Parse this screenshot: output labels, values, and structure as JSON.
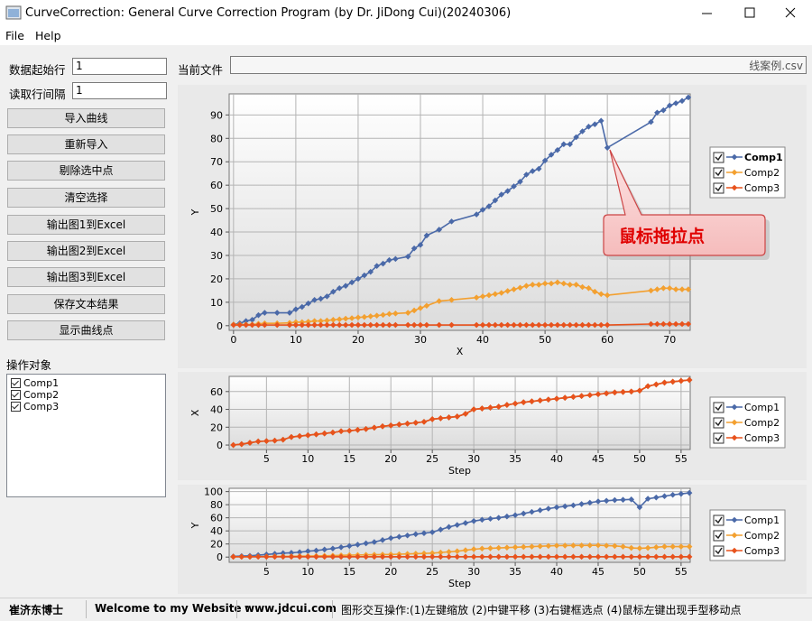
{
  "window": {
    "title": "CurveCorrection: General Curve Correction Program (by Dr. JiDong Cui)(20240306)"
  },
  "menu": [
    "File",
    "Help"
  ],
  "form": {
    "fields": [
      {
        "label": "数据起始行",
        "value": "1"
      },
      {
        "label": "读取行间隔",
        "value": "1"
      }
    ],
    "buttons": [
      "导入曲线",
      "重新导入",
      "剔除选中点",
      "清空选择",
      "输出图1到Excel",
      "输出图2到Excel",
      "输出图3到Excel",
      "保存文本结果",
      "显示曲线点"
    ],
    "list_title": "操作对象",
    "list_items": [
      "Comp1",
      "Comp2",
      "Comp3"
    ]
  },
  "file": {
    "label": "当前文件",
    "value": "线案例.csv"
  },
  "callout": "鼠标拖拉点",
  "status": [
    "崔济东博士",
    "Welcome to my Website :",
    "www.jdcui.com",
    "图形交互操作:(1)左键缩放 (2)中键平移 (3)右键框选点 (4)鼠标左键出现手型移动点"
  ],
  "chart_data": [
    {
      "type": "line",
      "x_label": "X",
      "y_label": "Y",
      "grid": true,
      "legend": "right",
      "x": [
        0,
        1,
        2,
        3,
        4,
        5,
        7,
        9,
        10,
        11,
        12,
        13,
        14,
        15,
        16,
        17,
        18,
        19,
        20,
        21,
        22,
        23,
        24,
        25,
        26,
        28,
        29,
        30,
        31,
        33,
        35,
        39,
        40,
        41,
        42,
        43,
        44,
        45,
        46,
        47,
        48,
        49,
        50,
        51,
        52,
        53,
        54,
        55,
        56,
        57,
        58,
        59,
        60,
        67,
        68,
        69,
        70,
        71,
        72,
        73
      ],
      "xlim": [
        -0.7,
        73.3
      ],
      "ylim": [
        -2,
        99
      ],
      "xticks": [
        0,
        10,
        20,
        30,
        40,
        50,
        60,
        70
      ],
      "yticks": [
        0,
        10,
        20,
        30,
        40,
        50,
        60,
        70,
        80,
        90
      ],
      "series": [
        {
          "name": "Comp1",
          "color": "#4a69a8",
          "values": [
            0.5,
            1,
            2,
            2.5,
            4.5,
            5.5,
            5.5,
            5.5,
            7,
            8,
            9.5,
            11,
            11.5,
            12.5,
            14.5,
            16,
            17,
            18.5,
            20,
            21.5,
            23,
            25.5,
            26.5,
            28,
            28.5,
            29.5,
            33,
            34.5,
            38.5,
            41,
            44.5,
            47.5,
            49.5,
            51,
            53.5,
            56,
            57.5,
            59.5,
            61.5,
            64.5,
            66,
            67,
            70.5,
            73,
            75,
            77.5,
            77.5,
            80.5,
            83,
            85,
            86,
            87.5,
            76,
            87,
            91,
            92,
            94,
            95,
            96,
            97.5
          ]
        },
        {
          "name": "Comp2",
          "color": "#f3a030",
          "values": [
            0.5,
            0.5,
            0.5,
            0.5,
            0.8,
            1,
            1,
            1.2,
            1.5,
            1.5,
            1.7,
            2,
            2,
            2.2,
            2.5,
            2.7,
            3,
            3.2,
            3.5,
            3.7,
            4,
            4.3,
            4.6,
            5,
            5.2,
            5.5,
            6.5,
            7.5,
            8.5,
            10.5,
            11,
            12,
            12.5,
            13,
            13.5,
            14,
            14.8,
            15.5,
            16.2,
            17,
            17.5,
            17.5,
            18,
            18,
            18.5,
            18,
            17.5,
            17.5,
            16.5,
            16,
            14.5,
            13.5,
            13,
            15,
            15.5,
            16,
            16,
            15.5,
            15.5,
            15.5
          ]
        },
        {
          "name": "Comp3",
          "color": "#e8521c",
          "values": [
            0.3,
            0.3,
            0.3,
            0.3,
            0.3,
            0.3,
            0.3,
            0.3,
            0.3,
            0.3,
            0.3,
            0.3,
            0.3,
            0.3,
            0.3,
            0.3,
            0.3,
            0.3,
            0.3,
            0.3,
            0.3,
            0.3,
            0.3,
            0.3,
            0.3,
            0.3,
            0.3,
            0.3,
            0.3,
            0.3,
            0.3,
            0.3,
            0.3,
            0.3,
            0.3,
            0.3,
            0.3,
            0.3,
            0.3,
            0.3,
            0.3,
            0.3,
            0.3,
            0.3,
            0.3,
            0.3,
            0.3,
            0.3,
            0.3,
            0.3,
            0.3,
            0.3,
            0.3,
            0.7,
            0.7,
            0.7,
            0.7,
            0.7,
            0.7,
            0.7
          ]
        }
      ]
    },
    {
      "type": "line",
      "x_label": "Step",
      "y_label": "X",
      "grid": true,
      "legend": "right",
      "x": [
        1,
        2,
        3,
        4,
        5,
        6,
        7,
        8,
        9,
        10,
        11,
        12,
        13,
        14,
        15,
        16,
        17,
        18,
        19,
        20,
        21,
        22,
        23,
        24,
        25,
        26,
        27,
        28,
        29,
        30,
        31,
        32,
        33,
        34,
        35,
        36,
        37,
        38,
        39,
        40,
        41,
        42,
        43,
        44,
        45,
        46,
        47,
        48,
        49,
        50,
        51,
        52,
        53,
        54,
        55,
        56
      ],
      "xlim": [
        0.5,
        56.1
      ],
      "ylim": [
        -5,
        77
      ],
      "xticks": [
        5,
        10,
        15,
        20,
        25,
        30,
        35,
        40,
        45,
        50,
        55
      ],
      "yticks": [
        0,
        20,
        40,
        60
      ],
      "series": [
        {
          "name": "Comp1",
          "color": "#4a69a8",
          "values": [
            0,
            1,
            2.5,
            4,
            4.5,
            5,
            6,
            9,
            10,
            11,
            12,
            13,
            14,
            15.5,
            16,
            17,
            18,
            19.5,
            21,
            22,
            23,
            24,
            25,
            26,
            29,
            30,
            31,
            32,
            35,
            40,
            41,
            42,
            43,
            45,
            46.5,
            48,
            49,
            50,
            51,
            52,
            53,
            54,
            55,
            56,
            57,
            58,
            59,
            59.5,
            60,
            61,
            66,
            68,
            70,
            71,
            72,
            73
          ]
        },
        {
          "name": "Comp2",
          "color": "#f3a030",
          "values": [
            0,
            1,
            2.5,
            4,
            4.5,
            5,
            6,
            9,
            10,
            11,
            12,
            13,
            14,
            15.5,
            16,
            17,
            18,
            19.5,
            21,
            22,
            23,
            24,
            25,
            26,
            29,
            30,
            31,
            32,
            35,
            40,
            41,
            42,
            43,
            45,
            46.5,
            48,
            49,
            50,
            51,
            52,
            53,
            54,
            55,
            56,
            57,
            58,
            59,
            59.5,
            60,
            61,
            66,
            68,
            70,
            71,
            72,
            73
          ]
        },
        {
          "name": "Comp3",
          "color": "#e8521c",
          "values": [
            0,
            1,
            2.5,
            4,
            4.5,
            5,
            6,
            9,
            10,
            11,
            12,
            13,
            14,
            15.5,
            16,
            17,
            18,
            19.5,
            21,
            22,
            23,
            24,
            25,
            26,
            29,
            30,
            31,
            32,
            35,
            40,
            41,
            42,
            43,
            45,
            46.5,
            48,
            49,
            50,
            51,
            52,
            53,
            54,
            55,
            56,
            57,
            58,
            59,
            59.5,
            60,
            61,
            66,
            68,
            70,
            71,
            72,
            73
          ]
        }
      ]
    },
    {
      "type": "line",
      "x_label": "Step",
      "y_label": "Y",
      "grid": true,
      "legend": "right",
      "x": [
        1,
        2,
        3,
        4,
        5,
        6,
        7,
        8,
        9,
        10,
        11,
        12,
        13,
        14,
        15,
        16,
        17,
        18,
        19,
        20,
        21,
        22,
        23,
        24,
        25,
        26,
        27,
        28,
        29,
        30,
        31,
        32,
        33,
        34,
        35,
        36,
        37,
        38,
        39,
        40,
        41,
        42,
        43,
        44,
        45,
        46,
        47,
        48,
        49,
        50,
        51,
        52,
        53,
        54,
        55,
        56
      ],
      "xlim": [
        0.5,
        56.1
      ],
      "ylim": [
        -8,
        105
      ],
      "xticks": [
        5,
        10,
        15,
        20,
        25,
        30,
        35,
        40,
        45,
        50,
        55
      ],
      "yticks": [
        0,
        20,
        40,
        60,
        80,
        100
      ],
      "series": [
        {
          "name": "Comp1",
          "color": "#4a69a8",
          "values": [
            1,
            1.5,
            2,
            3,
            4,
            5,
            6,
            6.5,
            7.5,
            9,
            10,
            11.5,
            13,
            15,
            17,
            19,
            21,
            23,
            26,
            29,
            31,
            33,
            35,
            36.5,
            38,
            42,
            46,
            49,
            52,
            55,
            57,
            58.5,
            60,
            62,
            64,
            66.5,
            69,
            71.5,
            74,
            76,
            77.5,
            79,
            81,
            83,
            85,
            86,
            87,
            87.5,
            88,
            76,
            89,
            91,
            93,
            95,
            96.5,
            98
          ]
        },
        {
          "name": "Comp2",
          "color": "#f3a030",
          "values": [
            0.5,
            0.5,
            0.6,
            0.7,
            0.8,
            1,
            1.1,
            1.2,
            1.4,
            1.5,
            1.7,
            2,
            2.2,
            2.6,
            3,
            3.2,
            3.4,
            3.6,
            3.8,
            4,
            4.4,
            4.8,
            5.2,
            5.6,
            6,
            7,
            8,
            9,
            10.5,
            12,
            13,
            13.5,
            14,
            14.5,
            15,
            15.5,
            16,
            16.5,
            17,
            17.5,
            17.6,
            17.7,
            17.8,
            17.9,
            18,
            17.5,
            17,
            16,
            14,
            13.5,
            14,
            15,
            16,
            16,
            16,
            16
          ]
        },
        {
          "name": "Comp3",
          "color": "#e8521c",
          "values": [
            0.5,
            0.5,
            0.5,
            0.5,
            0.5,
            0.5,
            0.5,
            0.5,
            0.5,
            0.5,
            0.5,
            0.5,
            0.5,
            0.5,
            0.5,
            0.5,
            0.5,
            0.5,
            0.5,
            0.5,
            0.5,
            0.5,
            0.5,
            0.5,
            0.5,
            0.5,
            0.5,
            0.5,
            0.5,
            0.5,
            0.5,
            0.5,
            0.5,
            0.5,
            0.5,
            0.5,
            0.5,
            0.5,
            0.5,
            0.5,
            0.5,
            0.5,
            0.5,
            0.5,
            0.5,
            0.5,
            0.5,
            0.5,
            0.5,
            0.5,
            0.5,
            0.5,
            0.5,
            0.5,
            0.5,
            0.5
          ]
        }
      ]
    }
  ]
}
